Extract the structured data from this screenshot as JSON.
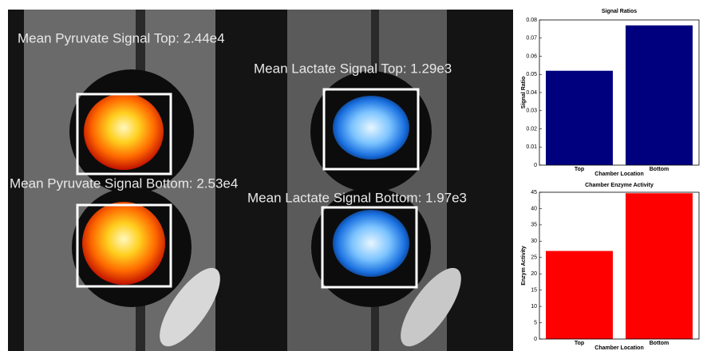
{
  "image_labels": {
    "pyruvate_top": "Mean Pyruvate Signal Top: 2.44e4",
    "lactate_top": "Mean Lactate Signal Top: 1.29e3",
    "pyruvate_bottom": "Mean Pyruvate Signal Bottom: 2.53e4",
    "lactate_bottom": "Mean Lactate Signal Bottom: 1.97e3"
  },
  "chart_data": [
    {
      "type": "bar",
      "title": "Signal Ratios",
      "x_label": "Chamber Location",
      "y_label": "Signal Ratio",
      "categories": [
        "Top",
        "Bottom"
      ],
      "values": [
        0.052,
        0.077
      ],
      "color": "#00007f",
      "ylim": [
        0,
        0.08
      ],
      "yticks": [
        0,
        0.01,
        0.02,
        0.03,
        0.04,
        0.05,
        0.06,
        0.07,
        0.08
      ]
    },
    {
      "type": "bar",
      "title": "Chamber Enzyme Activity",
      "x_label": "Chamber Location",
      "y_label": "Enzym Activity",
      "categories": [
        "Top",
        "Bottom"
      ],
      "values": [
        27,
        44.7
      ],
      "color": "#ff0000",
      "ylim": [
        0,
        45
      ],
      "yticks": [
        0,
        5,
        10,
        15,
        20,
        25,
        30,
        35,
        40,
        45
      ]
    }
  ]
}
